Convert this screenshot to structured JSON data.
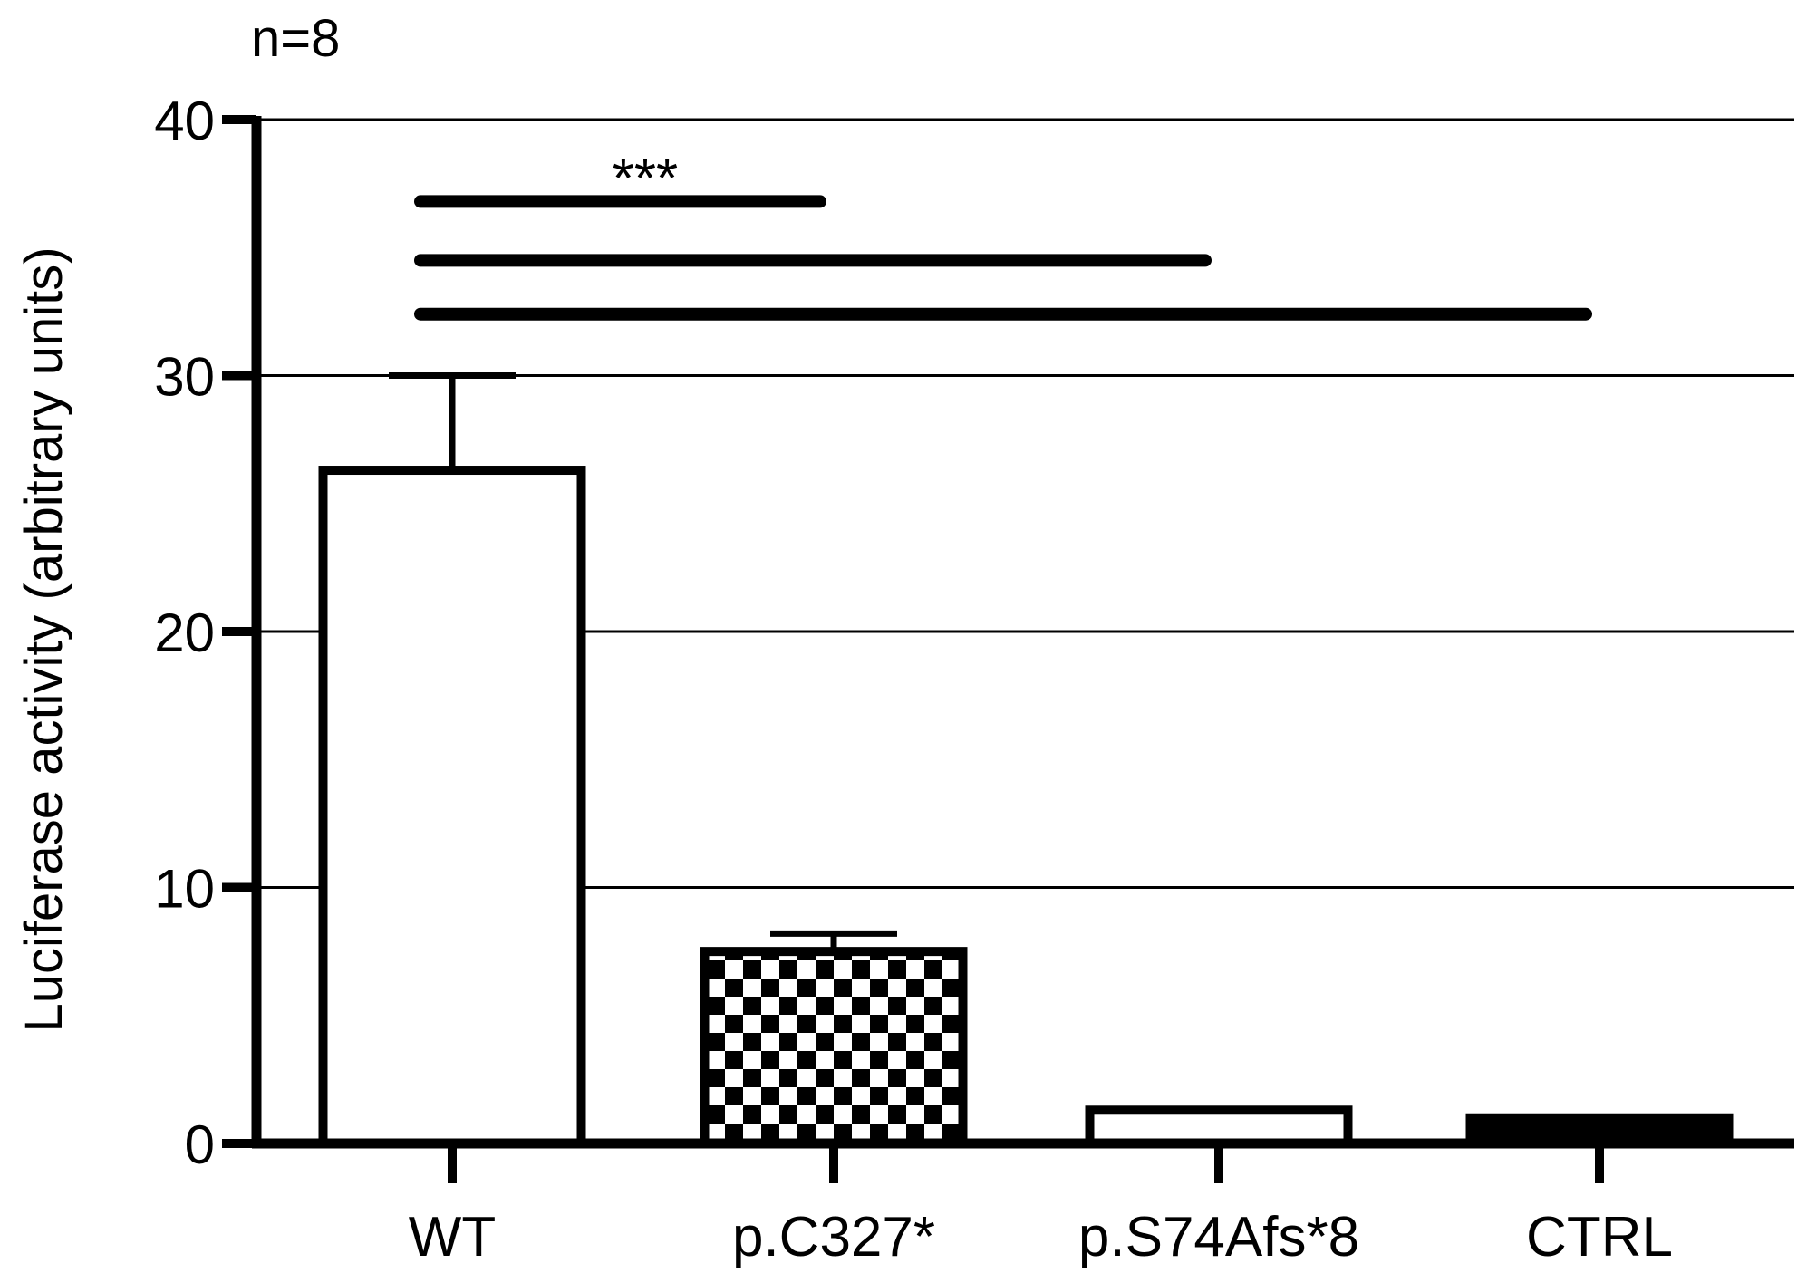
{
  "chart_data": {
    "type": "bar",
    "annotation_n": "n=8",
    "title": "",
    "xlabel": "",
    "ylabel": "Luciferase activity (arbitrary units)",
    "categories": [
      "WT",
      "p.C327*",
      "p.S74Afs*8",
      "CTRL"
    ],
    "values": [
      26.3,
      7.5,
      1.3,
      1.0
    ],
    "errors": [
      3.7,
      0.7,
      0,
      0
    ],
    "fills": [
      "white",
      "checker",
      "white",
      "black"
    ],
    "ylim": [
      0,
      40
    ],
    "yticks": [
      0,
      10,
      20,
      30,
      40
    ],
    "grid": true,
    "significance": [
      {
        "from": "WT",
        "to": "p.C327*",
        "level": 36.8
      },
      {
        "from": "WT",
        "to": "p.S74Afs*8",
        "level": 34.5
      },
      {
        "from": "WT",
        "to": "CTRL",
        "level": 32.4
      }
    ],
    "significance_label": "***"
  }
}
